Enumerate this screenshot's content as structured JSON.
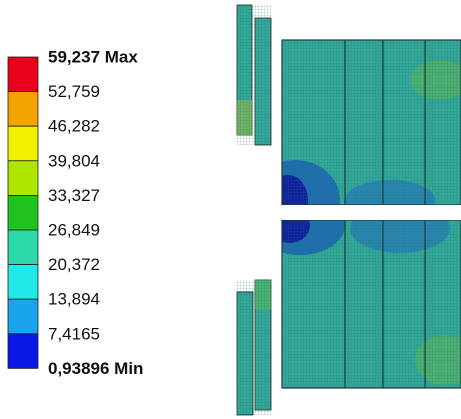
{
  "legend": {
    "labels": [
      "59,237 Max",
      "52,759",
      "46,282",
      "39,804",
      "33,327",
      "26,849",
      "20,372",
      "13,894",
      "7,4165",
      "0,93896 Min"
    ],
    "colors": [
      "#e8001c",
      "#f2a400",
      "#f2f000",
      "#aee600",
      "#20c21f",
      "#2ad8a8",
      "#20e8e8",
      "#1aa4ee",
      "#0a18e6"
    ]
  }
}
